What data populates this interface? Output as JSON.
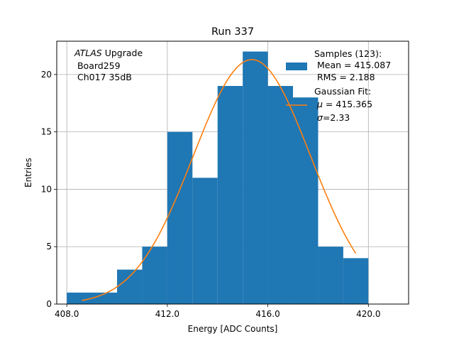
{
  "chart_data": {
    "type": "bar",
    "title": "Run 337",
    "xlabel": "Energy [ADC Counts]",
    "ylabel": "Entries",
    "xlim": [
      407.6,
      421.6
    ],
    "ylim": [
      0,
      22.9
    ],
    "grid": true,
    "legend_placement": "top-right",
    "x_ticks": [
      {
        "value": 408,
        "label": "408.0"
      },
      {
        "value": 412,
        "label": "412.0"
      },
      {
        "value": 416,
        "label": "416.0"
      },
      {
        "value": 420,
        "label": "420.0"
      }
    ],
    "y_ticks": [
      {
        "value": 0,
        "label": "0"
      },
      {
        "value": 5,
        "label": "5"
      },
      {
        "value": 10,
        "label": "10"
      },
      {
        "value": 15,
        "label": "15"
      },
      {
        "value": 20,
        "label": "20"
      }
    ],
    "annotation": {
      "italic": "ATLAS",
      "rest": " Upgrade",
      "line2": " Board259",
      "line3": " Ch017 35dB"
    },
    "histogram": {
      "name": "Samples (123):",
      "color": "#1f77b4",
      "bins": [
        {
          "x0": 408,
          "x1": 410,
          "count": 1
        },
        {
          "x0": 410,
          "x1": 411,
          "count": 3
        },
        {
          "x0": 411,
          "x1": 412,
          "count": 5
        },
        {
          "x0": 412,
          "x1": 413,
          "count": 15
        },
        {
          "x0": 413,
          "x1": 414,
          "count": 11
        },
        {
          "x0": 414,
          "x1": 415,
          "count": 19
        },
        {
          "x0": 415,
          "x1": 416,
          "count": 22
        },
        {
          "x0": 416,
          "x1": 417,
          "count": 19
        },
        {
          "x0": 417,
          "x1": 418,
          "count": 18
        },
        {
          "x0": 418,
          "x1": 419,
          "count": 5
        },
        {
          "x0": 419,
          "x1": 420,
          "count": 4
        }
      ]
    },
    "fit": {
      "name": "Gaussian Fit:",
      "color": "#ff7f0e",
      "mu": 415.365,
      "sigma": 2.33,
      "amplitude": 21.3,
      "x_range": [
        408.6,
        419.5
      ]
    },
    "legend": {
      "hist_title": "Samples (123):",
      "hist_line2": " Mean = 415.087",
      "hist_line3": " RMS = 2.188",
      "fit_title": "Gaussian Fit:",
      "fit_mu_symbol": "μ",
      "fit_mu_value": " = 415.365",
      "fit_sigma_symbol": "σ",
      "fit_sigma_value": "=2.33"
    }
  }
}
